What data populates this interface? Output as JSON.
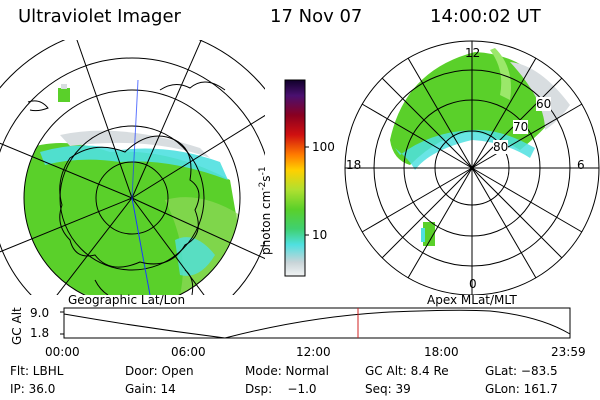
{
  "header": {
    "instrument": "Ultraviolet Imager",
    "date": "17 Nov 07",
    "time": "14:00:02 UT"
  },
  "left_panel": {
    "caption": "Geographic Lat/Lon"
  },
  "right_panel": {
    "caption": "Apex MLat/MLT",
    "mlt_labels": {
      "top": "12",
      "left": "18",
      "right": "6",
      "bottom": "0"
    },
    "lat_labels": [
      "60",
      "70",
      "80"
    ]
  },
  "colorbar": {
    "label": "photon cm",
    "exp1": "-2",
    "s": "s",
    "exp2": "-1",
    "ticks": [
      "100",
      "10"
    ]
  },
  "altitude_plot": {
    "ylabel": "GC Alt",
    "yticks": [
      "9.0",
      "1.8"
    ],
    "xticks": [
      "00:00",
      "06:00",
      "12:00",
      "18:00",
      "23:59"
    ],
    "current_time_marker": "14:00:02"
  },
  "info": {
    "flt": "Flt: LBHL",
    "door": "Door: Open",
    "mode": "Mode: Normal",
    "gcalt": "GC Alt: 8.4 Re",
    "glat": "GLat: −83.5",
    "ip": "IP: 36.0",
    "gain": "Gain: 14",
    "dsp": "Dsp:    −1.0",
    "seq": "Seq: 39",
    "glon": "GLon: 161.7"
  },
  "colors": {
    "aurora_green": "#5ad02a",
    "aurora_cyan": "#4fe0e0",
    "aurora_gray": "#d8dde0",
    "marker_red": "#d02020",
    "meridian_blue": "#1a3cff"
  }
}
